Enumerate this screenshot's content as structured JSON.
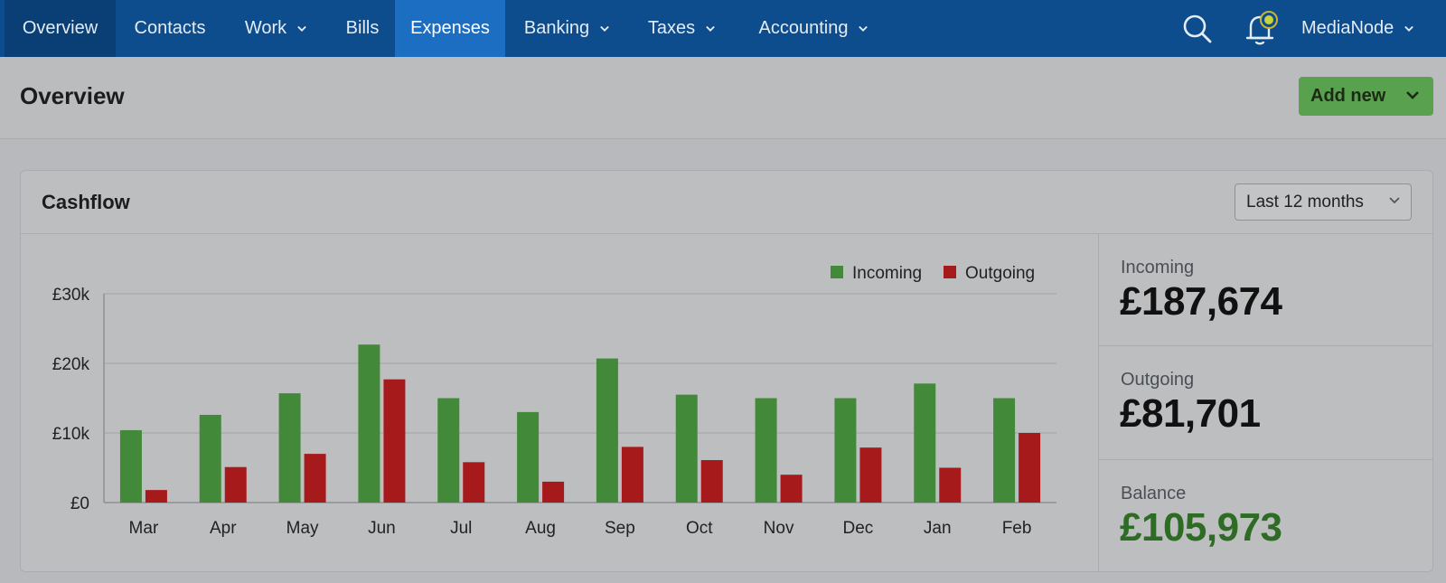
{
  "nav": {
    "items": [
      {
        "label": "Overview",
        "dropdown": false
      },
      {
        "label": "Contacts",
        "dropdown": false
      },
      {
        "label": "Work",
        "dropdown": true
      },
      {
        "label": "Bills",
        "dropdown": false
      },
      {
        "label": "Expenses",
        "dropdown": false
      },
      {
        "label": "Banking",
        "dropdown": true
      },
      {
        "label": "Taxes",
        "dropdown": true
      },
      {
        "label": "Accounting",
        "dropdown": true
      }
    ],
    "account_name": "MediaNode",
    "search_icon": "search-icon",
    "notification_icon": "bell-icon"
  },
  "header": {
    "title": "Overview",
    "add_new_label": "Add new"
  },
  "card": {
    "title": "Cashflow",
    "range_label": "Last 12 months"
  },
  "summary": {
    "incoming_label": "Incoming",
    "incoming_value": "£187,674",
    "outgoing_label": "Outgoing",
    "outgoing_value": "£81,701",
    "balance_label": "Balance",
    "balance_value": "£105,973"
  },
  "colors": {
    "incoming": "#428a3a",
    "outgoing": "#a71a1c",
    "balance_text": "#2e6b25",
    "nav_bg": "#0d4c8d",
    "nav_active": "#1b6ec2",
    "button_green": "#5aa14f"
  },
  "chart_data": {
    "type": "bar",
    "categories": [
      "Mar",
      "Apr",
      "May",
      "Jun",
      "Jul",
      "Aug",
      "Sep",
      "Oct",
      "Nov",
      "Dec",
      "Jan",
      "Feb"
    ],
    "series": [
      {
        "name": "Incoming",
        "values": [
          10400,
          12600,
          15700,
          22700,
          15000,
          13000,
          20700,
          15500,
          15000,
          15000,
          17100,
          15000
        ]
      },
      {
        "name": "Outgoing",
        "values": [
          1800,
          5100,
          7000,
          17700,
          5800,
          3000,
          8000,
          6100,
          4000,
          7900,
          5000,
          10000
        ]
      }
    ],
    "y_ticks": [
      "£0",
      "£10k",
      "£20k",
      "£30k"
    ],
    "ylim": [
      0,
      30000
    ],
    "grid": true,
    "legend_position": "top-right"
  }
}
